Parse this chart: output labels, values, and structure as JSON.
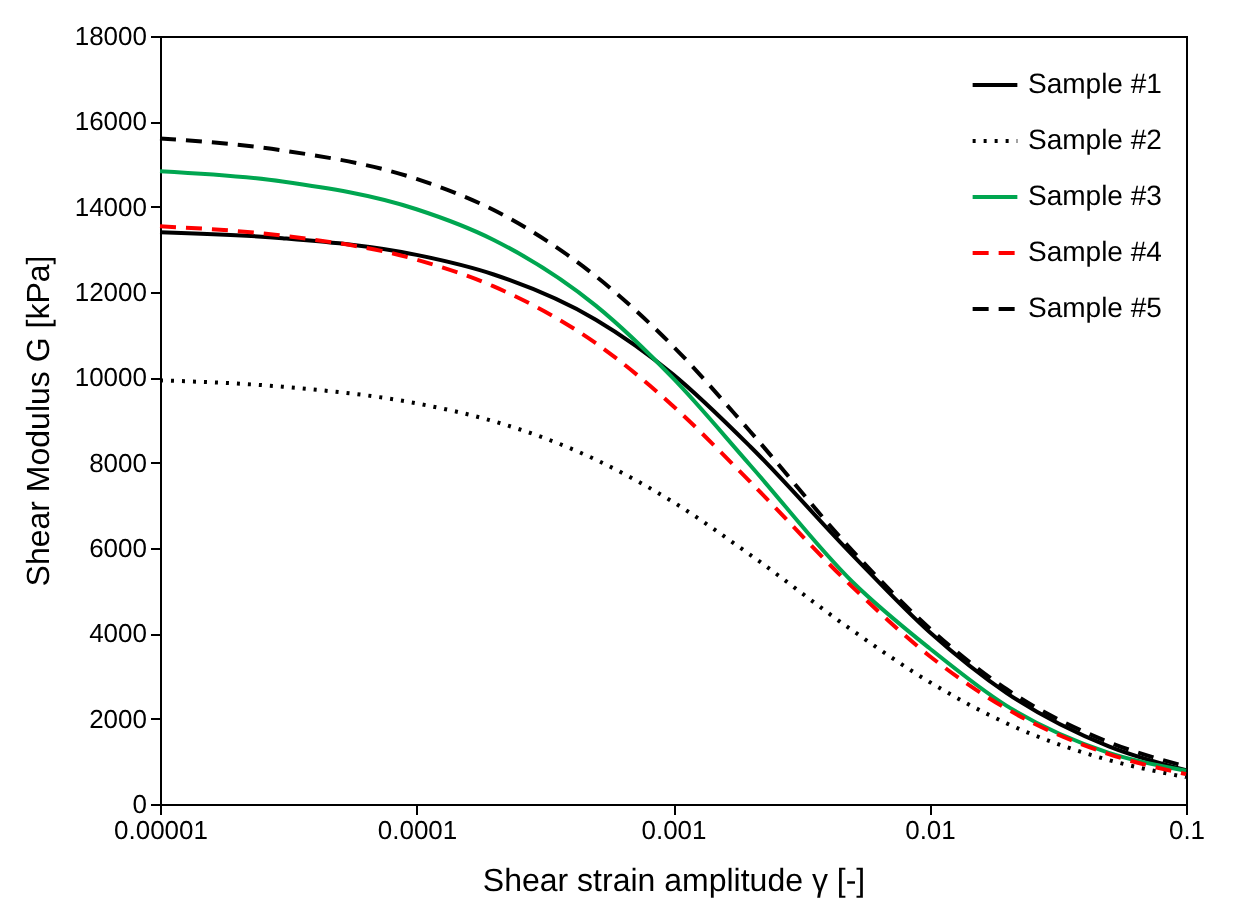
{
  "chart_data": {
    "type": "line",
    "xlabel": "Shear strain amplitude γ [-]",
    "ylabel": "Shear Modulus G [kPa]",
    "x": [
      1e-05,
      3e-05,
      0.0001,
      0.0002,
      0.0005,
      0.001,
      0.002,
      0.005,
      0.01,
      0.02,
      0.05,
      0.1
    ],
    "series": [
      {
        "name": "Sample #1",
        "color": "#000000",
        "line_style": "solid",
        "values": [
          13400,
          13260,
          12870,
          12410,
          11350,
          10070,
          8380,
          5840,
          4030,
          2600,
          1350,
          790
        ]
      },
      {
        "name": "Sample #2",
        "color": "#000000",
        "line_style": "dotted",
        "values": [
          9930,
          9780,
          9390,
          8970,
          8070,
          7080,
          5840,
          4070,
          2860,
          1890,
          1030,
          630
        ]
      },
      {
        "name": "Sample #3",
        "color": "#00a650",
        "line_style": "solid",
        "values": [
          14830,
          14590,
          13940,
          13220,
          11680,
          9980,
          7940,
          5210,
          3650,
          2300,
          1200,
          780
        ]
      },
      {
        "name": "Sample #4",
        "color": "#ff0000",
        "line_style": "dashed",
        "values": [
          13540,
          13320,
          12760,
          12130,
          10800,
          9330,
          7550,
          5090,
          3470,
          2230,
          1170,
          700
        ]
      },
      {
        "name": "Sample #5",
        "color": "#000000",
        "line_style": "dashed",
        "values": [
          15600,
          15320,
          14650,
          13920,
          12370,
          10730,
          8730,
          5940,
          4120,
          2690,
          1450,
          880
        ]
      }
    ],
    "log": "x",
    "xlim": [
      1e-05,
      0.1
    ],
    "xticks": [
      {
        "value": 1e-05,
        "label": "0.00001"
      },
      0.0001,
      0.001,
      0.01,
      0.1
    ],
    "ylim": [
      0,
      18000
    ],
    "yticks": [
      0,
      2000,
      4000,
      6000,
      8000,
      10000,
      12000,
      14000,
      16000,
      18000
    ],
    "grid": false,
    "legend": "top right",
    "marker": "none"
  }
}
